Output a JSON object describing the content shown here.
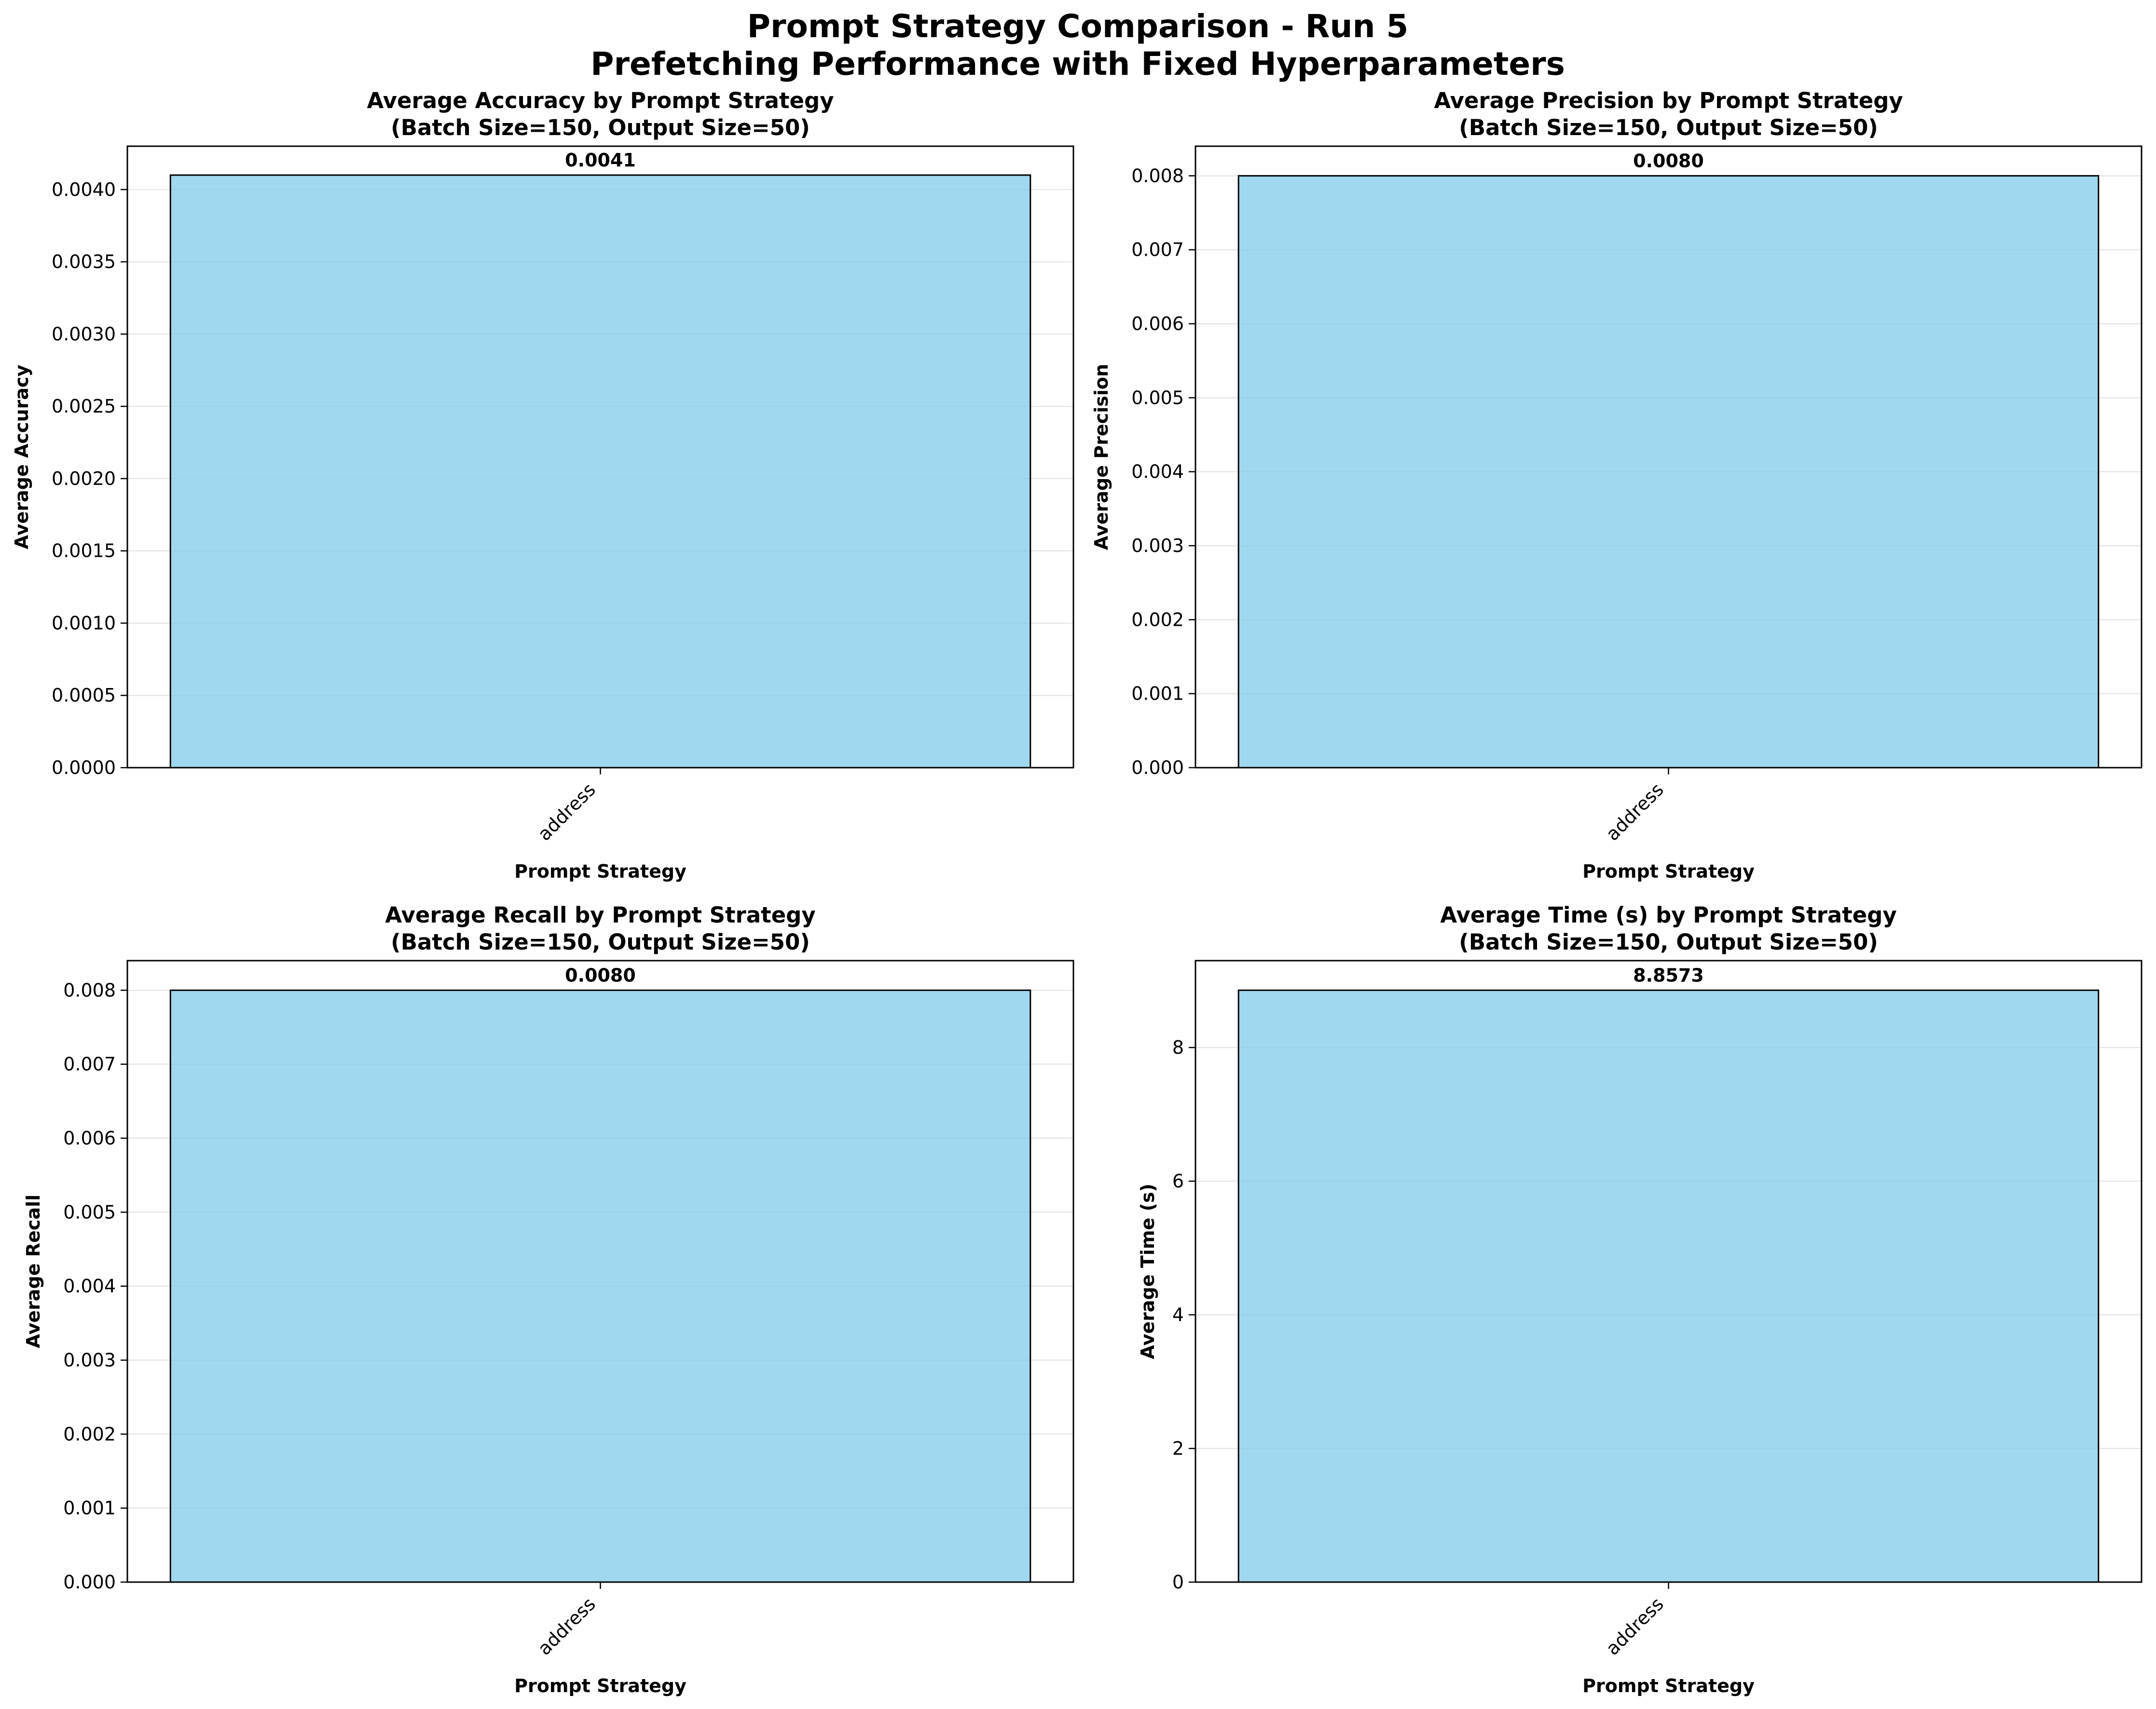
{
  "figure": {
    "title_line1": "Prompt Strategy Comparison - Run 5",
    "title_line2": "Prefetching Performance with Fixed Hyperparameters"
  },
  "colors": {
    "bar_fill": "#87ceeb",
    "bar_edge": "#000000",
    "grid": "#e6e6e6"
  },
  "chart_data": [
    {
      "type": "bar",
      "title_line1": "Average Accuracy by Prompt Strategy",
      "title_line2": "(Batch Size=150, Output Size=50)",
      "xlabel": "Prompt Strategy",
      "ylabel": "Average Accuracy",
      "categories": [
        "address"
      ],
      "values": [
        0.0041
      ],
      "value_labels": [
        "0.0041"
      ],
      "ylim": [
        0,
        0.0043
      ],
      "yticks": [
        0,
        0.0005,
        0.001,
        0.0015,
        0.002,
        0.0025,
        0.003,
        0.0035,
        0.004
      ],
      "ytick_labels": [
        "0.0000",
        "0.0005",
        "0.0010",
        "0.0015",
        "0.0020",
        "0.0025",
        "0.0030",
        "0.0035",
        "0.0040"
      ],
      "grid": "y"
    },
    {
      "type": "bar",
      "title_line1": "Average Precision by Prompt Strategy",
      "title_line2": "(Batch Size=150, Output Size=50)",
      "xlabel": "Prompt Strategy",
      "ylabel": "Average Precision",
      "categories": [
        "address"
      ],
      "values": [
        0.008
      ],
      "value_labels": [
        "0.0080"
      ],
      "ylim": [
        0,
        0.0084
      ],
      "yticks": [
        0,
        0.001,
        0.002,
        0.003,
        0.004,
        0.005,
        0.006,
        0.007,
        0.008
      ],
      "ytick_labels": [
        "0.000",
        "0.001",
        "0.002",
        "0.003",
        "0.004",
        "0.005",
        "0.006",
        "0.007",
        "0.008"
      ],
      "grid": "y"
    },
    {
      "type": "bar",
      "title_line1": "Average Recall by Prompt Strategy",
      "title_line2": "(Batch Size=150, Output Size=50)",
      "xlabel": "Prompt Strategy",
      "ylabel": "Average Recall",
      "categories": [
        "address"
      ],
      "values": [
        0.008
      ],
      "value_labels": [
        "0.0080"
      ],
      "ylim": [
        0,
        0.0084
      ],
      "yticks": [
        0,
        0.001,
        0.002,
        0.003,
        0.004,
        0.005,
        0.006,
        0.007,
        0.008
      ],
      "ytick_labels": [
        "0.000",
        "0.001",
        "0.002",
        "0.003",
        "0.004",
        "0.005",
        "0.006",
        "0.007",
        "0.008"
      ],
      "grid": "y"
    },
    {
      "type": "bar",
      "title_line1": "Average Time (s) by Prompt Strategy",
      "title_line2": "(Batch Size=150, Output Size=50)",
      "xlabel": "Prompt Strategy",
      "ylabel": "Average Time (s)",
      "categories": [
        "address"
      ],
      "values": [
        8.8573
      ],
      "value_labels": [
        "8.8573"
      ],
      "ylim": [
        0,
        9.3
      ],
      "yticks": [
        0,
        2,
        4,
        6,
        8
      ],
      "ytick_labels": [
        "0",
        "2",
        "4",
        "6",
        "8"
      ],
      "grid": "y"
    }
  ]
}
